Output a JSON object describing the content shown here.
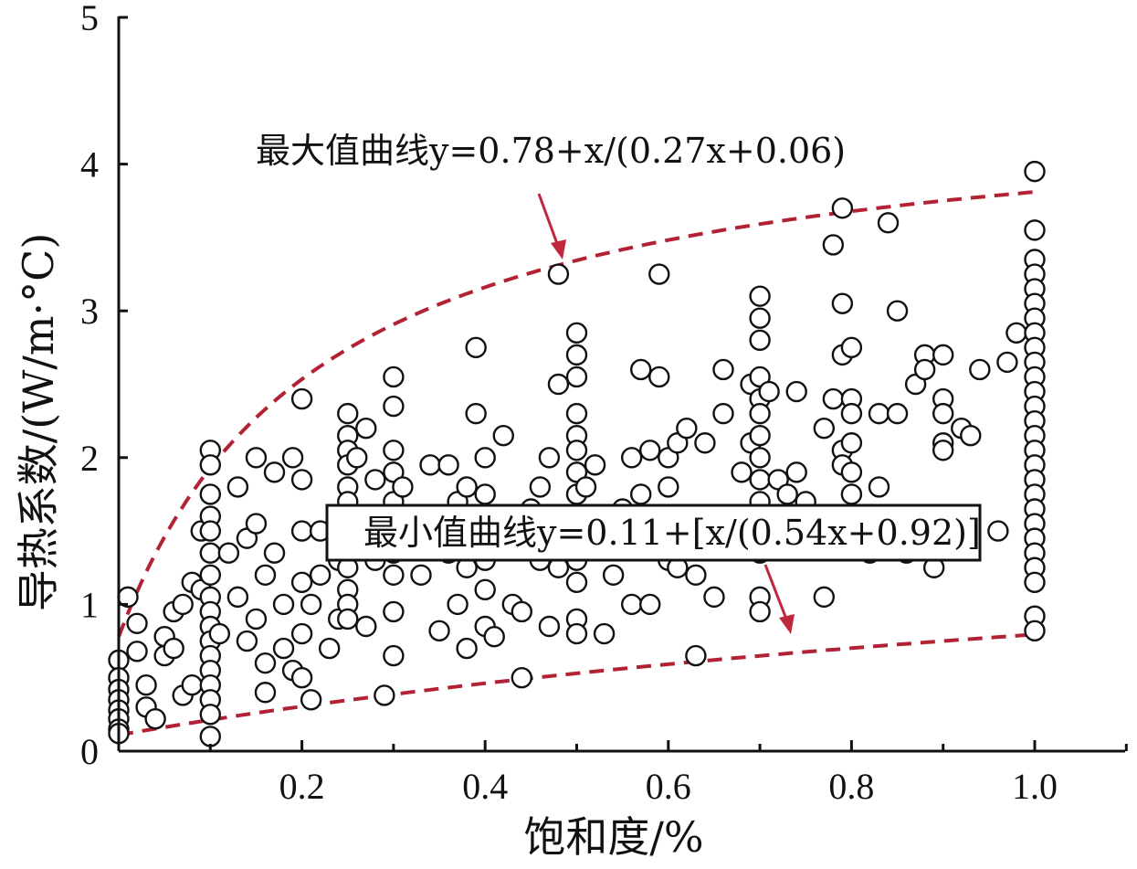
{
  "chart_data": {
    "type": "scatter",
    "title": "",
    "xlabel": "饱和度/%",
    "ylabel": "导热系数/(W/m·°C)",
    "xlim": [
      0,
      1.1
    ],
    "ylim": [
      0,
      5
    ],
    "x_ticks": [
      0.2,
      0.4,
      0.6,
      0.8,
      1.0
    ],
    "x_tick_labels": [
      "0.2",
      "0.4",
      "0.6",
      "0.8",
      "1.0"
    ],
    "y_ticks": [
      0,
      1,
      2,
      3,
      4,
      5
    ],
    "y_tick_labels": [
      "0",
      "1",
      "2",
      "3",
      "4",
      "5"
    ],
    "grid": false,
    "curves": [
      {
        "label": "最大值曲线y=0.78+x/(0.27x+0.06)",
        "a": 0.78,
        "b": 0.27,
        "c": 0.06,
        "xrange": [
          0,
          1.0
        ],
        "style": "dashed",
        "color": "#b22234"
      },
      {
        "label": "最小值曲线y=0.11+[x/(0.54x+0.92)]",
        "a": 0.11,
        "b": 0.54,
        "c": 0.92,
        "xrange": [
          0,
          1.0
        ],
        "style": "dashed",
        "color": "#b22234"
      }
    ],
    "annotations": {
      "max_curve": "最大值曲线y=0.78+x/(0.27x+0.06)",
      "min_curve": "最小值曲线y=0.11+[x/(0.54x+0.92)]"
    },
    "series": [
      {
        "marker": "open-circle",
        "points": [
          [
            0.0,
            0.62
          ],
          [
            0.0,
            0.5
          ],
          [
            0.0,
            0.42
          ],
          [
            0.0,
            0.35
          ],
          [
            0.0,
            0.28
          ],
          [
            0.0,
            0.22
          ],
          [
            0.0,
            0.15
          ],
          [
            0.0,
            0.12
          ],
          [
            0.01,
            1.05
          ],
          [
            0.02,
            0.87
          ],
          [
            0.02,
            0.68
          ],
          [
            0.03,
            0.45
          ],
          [
            0.03,
            0.3
          ],
          [
            0.04,
            0.22
          ],
          [
            0.05,
            0.65
          ],
          [
            0.05,
            0.78
          ],
          [
            0.06,
            0.95
          ],
          [
            0.06,
            0.7
          ],
          [
            0.07,
            1.0
          ],
          [
            0.07,
            0.38
          ],
          [
            0.08,
            1.15
          ],
          [
            0.08,
            0.45
          ],
          [
            0.09,
            1.1
          ],
          [
            0.09,
            1.5
          ],
          [
            0.1,
            2.05
          ],
          [
            0.1,
            1.95
          ],
          [
            0.1,
            1.75
          ],
          [
            0.1,
            1.6
          ],
          [
            0.1,
            1.5
          ],
          [
            0.1,
            1.35
          ],
          [
            0.1,
            1.2
          ],
          [
            0.1,
            1.05
          ],
          [
            0.1,
            0.95
          ],
          [
            0.1,
            0.85
          ],
          [
            0.1,
            0.75
          ],
          [
            0.1,
            0.65
          ],
          [
            0.1,
            0.55
          ],
          [
            0.1,
            0.45
          ],
          [
            0.1,
            0.35
          ],
          [
            0.1,
            0.25
          ],
          [
            0.1,
            0.1
          ],
          [
            0.11,
            0.8
          ],
          [
            0.12,
            1.35
          ],
          [
            0.13,
            1.05
          ],
          [
            0.13,
            1.8
          ],
          [
            0.14,
            1.45
          ],
          [
            0.14,
            0.75
          ],
          [
            0.15,
            2.0
          ],
          [
            0.15,
            1.55
          ],
          [
            0.15,
            0.9
          ],
          [
            0.16,
            1.2
          ],
          [
            0.16,
            0.6
          ],
          [
            0.16,
            0.4
          ],
          [
            0.17,
            1.35
          ],
          [
            0.17,
            1.9
          ],
          [
            0.18,
            1.0
          ],
          [
            0.18,
            0.7
          ],
          [
            0.19,
            0.55
          ],
          [
            0.19,
            2.0
          ],
          [
            0.2,
            2.4
          ],
          [
            0.2,
            1.85
          ],
          [
            0.2,
            1.5
          ],
          [
            0.2,
            1.15
          ],
          [
            0.2,
            0.8
          ],
          [
            0.2,
            0.5
          ],
          [
            0.21,
            1.0
          ],
          [
            0.21,
            0.35
          ],
          [
            0.22,
            1.5
          ],
          [
            0.22,
            1.2
          ],
          [
            0.23,
            0.7
          ],
          [
            0.24,
            1.3
          ],
          [
            0.24,
            0.9
          ],
          [
            0.25,
            2.3
          ],
          [
            0.25,
            2.15
          ],
          [
            0.25,
            2.05
          ],
          [
            0.25,
            1.95
          ],
          [
            0.25,
            1.8
          ],
          [
            0.25,
            1.7
          ],
          [
            0.25,
            1.55
          ],
          [
            0.25,
            1.4
          ],
          [
            0.25,
            1.25
          ],
          [
            0.25,
            1.1
          ],
          [
            0.25,
            1.0
          ],
          [
            0.25,
            0.9
          ],
          [
            0.26,
            2.0
          ],
          [
            0.26,
            1.6
          ],
          [
            0.27,
            2.2
          ],
          [
            0.27,
            0.85
          ],
          [
            0.28,
            1.85
          ],
          [
            0.28,
            1.3
          ],
          [
            0.29,
            1.6
          ],
          [
            0.29,
            0.38
          ],
          [
            0.3,
            2.55
          ],
          [
            0.3,
            2.35
          ],
          [
            0.3,
            2.05
          ],
          [
            0.3,
            1.9
          ],
          [
            0.3,
            1.7
          ],
          [
            0.3,
            1.5
          ],
          [
            0.3,
            1.35
          ],
          [
            0.3,
            1.2
          ],
          [
            0.3,
            0.95
          ],
          [
            0.3,
            0.65
          ],
          [
            0.31,
            1.8
          ],
          [
            0.32,
            1.45
          ],
          [
            0.33,
            1.2
          ],
          [
            0.34,
            1.95
          ],
          [
            0.34,
            1.6
          ],
          [
            0.35,
            0.82
          ],
          [
            0.36,
            1.95
          ],
          [
            0.36,
            1.35
          ],
          [
            0.37,
            1.0
          ],
          [
            0.37,
            1.7
          ],
          [
            0.38,
            1.8
          ],
          [
            0.38,
            1.25
          ],
          [
            0.38,
            0.7
          ],
          [
            0.39,
            2.3
          ],
          [
            0.39,
            2.75
          ],
          [
            0.4,
            2.0
          ],
          [
            0.4,
            1.75
          ],
          [
            0.4,
            1.55
          ],
          [
            0.4,
            1.3
          ],
          [
            0.4,
            1.1
          ],
          [
            0.4,
            0.85
          ],
          [
            0.41,
            0.78
          ],
          [
            0.42,
            2.15
          ],
          [
            0.42,
            1.5
          ],
          [
            0.43,
            1.0
          ],
          [
            0.44,
            0.95
          ],
          [
            0.44,
            0.5
          ],
          [
            0.45,
            1.65
          ],
          [
            0.46,
            1.8
          ],
          [
            0.46,
            1.3
          ],
          [
            0.47,
            2.0
          ],
          [
            0.47,
            0.85
          ],
          [
            0.48,
            2.5
          ],
          [
            0.48,
            1.25
          ],
          [
            0.48,
            3.25
          ],
          [
            0.49,
            1.55
          ],
          [
            0.5,
            2.85
          ],
          [
            0.5,
            2.7
          ],
          [
            0.5,
            2.55
          ],
          [
            0.5,
            2.3
          ],
          [
            0.5,
            2.15
          ],
          [
            0.5,
            2.05
          ],
          [
            0.5,
            1.9
          ],
          [
            0.5,
            1.75
          ],
          [
            0.5,
            1.6
          ],
          [
            0.5,
            1.45
          ],
          [
            0.5,
            1.3
          ],
          [
            0.5,
            1.15
          ],
          [
            0.5,
            0.9
          ],
          [
            0.5,
            0.8
          ],
          [
            0.51,
            1.8
          ],
          [
            0.52,
            1.95
          ],
          [
            0.53,
            0.8
          ],
          [
            0.54,
            1.55
          ],
          [
            0.54,
            1.2
          ],
          [
            0.55,
            1.65
          ],
          [
            0.56,
            2.0
          ],
          [
            0.56,
            1.0
          ],
          [
            0.57,
            2.6
          ],
          [
            0.57,
            1.75
          ],
          [
            0.58,
            2.05
          ],
          [
            0.58,
            1.0
          ],
          [
            0.59,
            3.25
          ],
          [
            0.59,
            2.55
          ],
          [
            0.6,
            2.0
          ],
          [
            0.6,
            1.8
          ],
          [
            0.6,
            1.5
          ],
          [
            0.6,
            1.3
          ],
          [
            0.61,
            2.1
          ],
          [
            0.61,
            1.25
          ],
          [
            0.62,
            1.6
          ],
          [
            0.62,
            2.2
          ],
          [
            0.63,
            1.2
          ],
          [
            0.63,
            0.65
          ],
          [
            0.64,
            2.1
          ],
          [
            0.65,
            1.55
          ],
          [
            0.65,
            1.05
          ],
          [
            0.66,
            2.6
          ],
          [
            0.66,
            2.3
          ],
          [
            0.68,
            1.9
          ],
          [
            0.69,
            2.5
          ],
          [
            0.69,
            2.1
          ],
          [
            0.7,
            3.1
          ],
          [
            0.7,
            2.95
          ],
          [
            0.7,
            2.8
          ],
          [
            0.7,
            2.55
          ],
          [
            0.7,
            2.4
          ],
          [
            0.7,
            2.3
          ],
          [
            0.7,
            2.15
          ],
          [
            0.7,
            2.0
          ],
          [
            0.7,
            1.85
          ],
          [
            0.7,
            1.7
          ],
          [
            0.7,
            1.55
          ],
          [
            0.7,
            1.35
          ],
          [
            0.7,
            1.05
          ],
          [
            0.7,
            0.95
          ],
          [
            0.71,
            2.45
          ],
          [
            0.71,
            1.6
          ],
          [
            0.72,
            1.85
          ],
          [
            0.73,
            1.75
          ],
          [
            0.74,
            2.45
          ],
          [
            0.74,
            1.9
          ],
          [
            0.75,
            1.7
          ],
          [
            0.76,
            1.6
          ],
          [
            0.77,
            2.2
          ],
          [
            0.77,
            1.05
          ],
          [
            0.78,
            3.45
          ],
          [
            0.78,
            2.4
          ],
          [
            0.79,
            3.7
          ],
          [
            0.79,
            3.05
          ],
          [
            0.79,
            2.7
          ],
          [
            0.79,
            2.05
          ],
          [
            0.79,
            1.95
          ],
          [
            0.8,
            2.75
          ],
          [
            0.8,
            2.4
          ],
          [
            0.8,
            2.3
          ],
          [
            0.8,
            2.1
          ],
          [
            0.8,
            1.9
          ],
          [
            0.8,
            1.75
          ],
          [
            0.81,
            1.5
          ],
          [
            0.82,
            1.35
          ],
          [
            0.83,
            2.3
          ],
          [
            0.83,
            1.8
          ],
          [
            0.84,
            3.6
          ],
          [
            0.85,
            3.0
          ],
          [
            0.85,
            2.3
          ],
          [
            0.86,
            1.35
          ],
          [
            0.87,
            2.5
          ],
          [
            0.88,
            2.7
          ],
          [
            0.88,
            2.6
          ],
          [
            0.89,
            1.25
          ],
          [
            0.9,
            2.7
          ],
          [
            0.9,
            2.4
          ],
          [
            0.9,
            2.3
          ],
          [
            0.9,
            2.1
          ],
          [
            0.9,
            2.05
          ],
          [
            0.91,
            1.5
          ],
          [
            0.92,
            2.2
          ],
          [
            0.93,
            2.15
          ],
          [
            0.94,
            2.6
          ],
          [
            0.96,
            1.5
          ],
          [
            0.97,
            2.65
          ],
          [
            0.98,
            2.85
          ],
          [
            1.0,
            3.95
          ],
          [
            1.0,
            3.55
          ],
          [
            1.0,
            3.35
          ],
          [
            1.0,
            3.25
          ],
          [
            1.0,
            3.15
          ],
          [
            1.0,
            3.05
          ],
          [
            1.0,
            2.95
          ],
          [
            1.0,
            2.85
          ],
          [
            1.0,
            2.75
          ],
          [
            1.0,
            2.65
          ],
          [
            1.0,
            2.55
          ],
          [
            1.0,
            2.45
          ],
          [
            1.0,
            2.35
          ],
          [
            1.0,
            2.25
          ],
          [
            1.0,
            2.15
          ],
          [
            1.0,
            2.05
          ],
          [
            1.0,
            1.95
          ],
          [
            1.0,
            1.85
          ],
          [
            1.0,
            1.75
          ],
          [
            1.0,
            1.65
          ],
          [
            1.0,
            1.55
          ],
          [
            1.0,
            1.45
          ],
          [
            1.0,
            1.35
          ],
          [
            1.0,
            1.25
          ],
          [
            1.0,
            1.15
          ],
          [
            1.0,
            0.92
          ],
          [
            1.0,
            0.82
          ]
        ]
      }
    ]
  }
}
